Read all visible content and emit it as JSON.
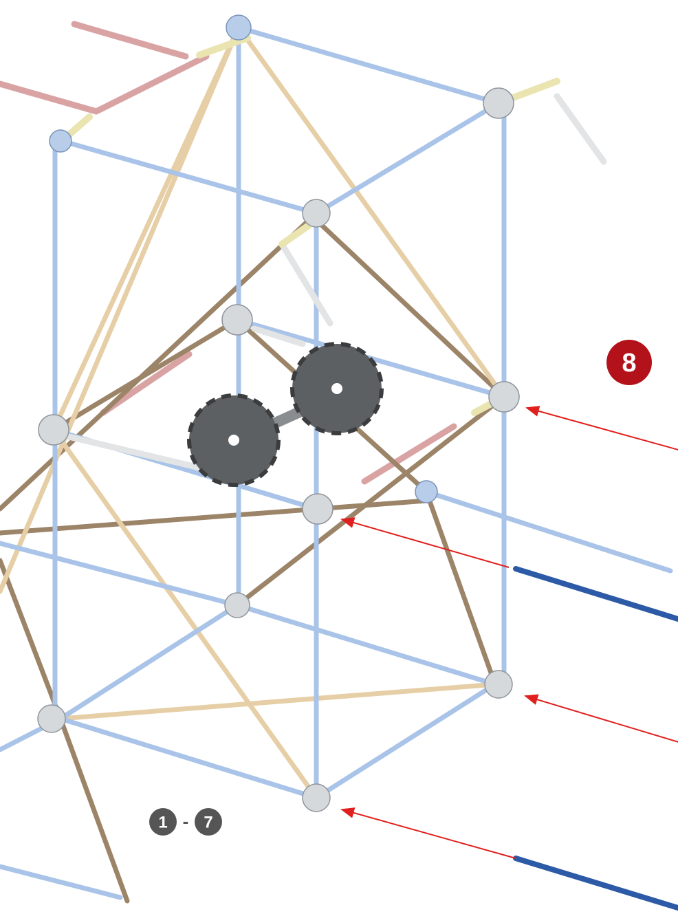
{
  "step": "8",
  "range": {
    "start": "1",
    "separator": "-",
    "end": "7"
  }
}
